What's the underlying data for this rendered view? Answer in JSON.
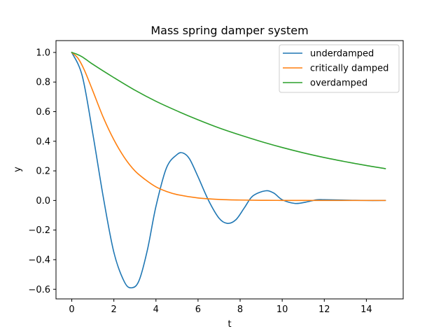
{
  "chart_data": {
    "type": "line",
    "title": "Mass spring damper system",
    "xlabel": "t",
    "ylabel": "y",
    "xlim": [
      -0.75,
      15.75
    ],
    "ylim": [
      -0.665,
      1.08
    ],
    "xticks": [
      0,
      2,
      4,
      6,
      8,
      10,
      12,
      14
    ],
    "xtick_labels": [
      "0",
      "2",
      "4",
      "6",
      "8",
      "10",
      "12",
      "14"
    ],
    "yticks": [
      -0.6,
      -0.4,
      -0.2,
      0.0,
      0.2,
      0.4,
      0.6,
      0.8,
      1.0
    ],
    "ytick_labels": [
      "−0.6",
      "−0.4",
      "−0.2",
      "0.0",
      "0.2",
      "0.4",
      "0.6",
      "0.8",
      "1.0"
    ],
    "grid": false,
    "legend_position": "top-right",
    "series": [
      {
        "name": "underdamped",
        "color": "#1f77b4",
        "x": [
          0,
          0.5,
          1.0,
          1.5,
          2.0,
          2.5,
          2.85,
          3.2,
          3.6,
          4.0,
          4.5,
          5.0,
          5.3,
          5.6,
          6.0,
          6.5,
          7.0,
          7.4,
          7.8,
          8.2,
          8.6,
          9.2,
          9.6,
          10.0,
          10.6,
          11.1,
          11.6,
          12.0,
          13.0,
          14.0,
          14.9
        ],
        "y": [
          1.0,
          0.84,
          0.45,
          0.02,
          -0.35,
          -0.55,
          -0.59,
          -0.54,
          -0.33,
          -0.04,
          0.22,
          0.31,
          0.32,
          0.28,
          0.16,
          0.0,
          -0.12,
          -0.155,
          -0.13,
          -0.05,
          0.03,
          0.065,
          0.05,
          0.005,
          -0.02,
          -0.012,
          0.004,
          0.005,
          0.002,
          0.0,
          0.0
        ]
      },
      {
        "name": "critically damped",
        "color": "#ff7f0e",
        "x": [
          0,
          0.3,
          0.6,
          1.0,
          1.5,
          2.0,
          2.5,
          3.0,
          3.5,
          4.0,
          4.5,
          5.0,
          6.0,
          7.0,
          8.0,
          9.0,
          10.0,
          11.0,
          12.0,
          13.0,
          14.0,
          14.9
        ],
        "y": [
          1.0,
          0.96,
          0.88,
          0.74,
          0.56,
          0.41,
          0.29,
          0.2,
          0.14,
          0.092,
          0.061,
          0.04,
          0.017,
          0.007,
          0.003,
          0.001,
          0.0005,
          0.0002,
          0.0,
          0.0,
          0.0,
          0.0
        ]
      },
      {
        "name": "overdamped",
        "color": "#2ca02c",
        "x": [
          0,
          0.2,
          0.5,
          1.0,
          2.0,
          3.0,
          4.0,
          5.0,
          6.0,
          7.0,
          8.0,
          9.0,
          10.0,
          11.0,
          12.0,
          13.0,
          14.0,
          14.9
        ],
        "y": [
          1.0,
          0.99,
          0.97,
          0.92,
          0.83,
          0.745,
          0.67,
          0.605,
          0.545,
          0.49,
          0.442,
          0.398,
          0.358,
          0.322,
          0.29,
          0.262,
          0.236,
          0.215
        ]
      }
    ]
  }
}
